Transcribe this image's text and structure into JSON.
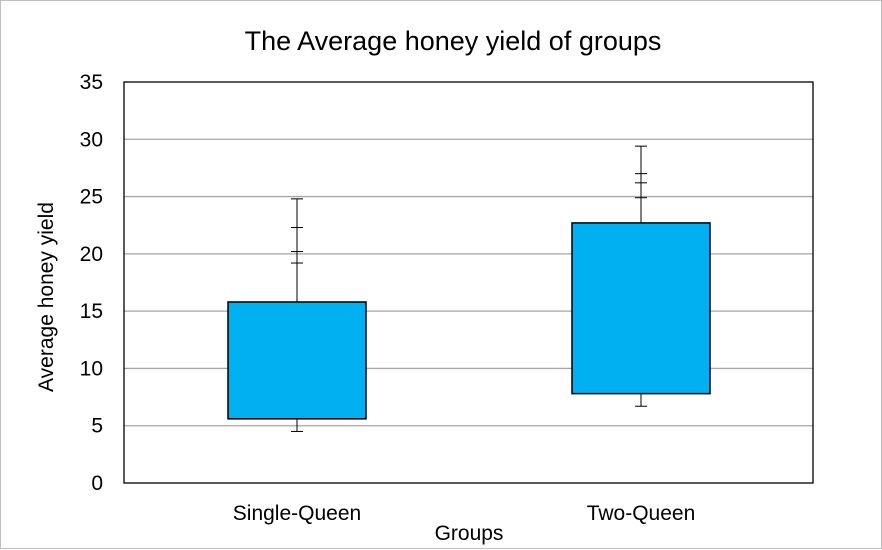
{
  "chart_data": {
    "type": "box",
    "title": "The Average honey yield of groups",
    "xlabel": "Groups",
    "ylabel": "Average honey yield",
    "ylim": [
      0,
      35
    ],
    "yticks": [
      0,
      5,
      10,
      15,
      20,
      25,
      30,
      35
    ],
    "grid": true,
    "colors": {
      "box_fill": "#00b0f0",
      "box_stroke": "#000000",
      "grid": "#a6a6a6"
    },
    "categories": [
      "Single-Queen",
      "Two-Queen"
    ],
    "boxes": [
      {
        "category": "Single-Queen",
        "min": 4.5,
        "q1": 5.6,
        "q3": 15.8,
        "max": 24.8,
        "marks": [
          19.2,
          20.2,
          22.3
        ]
      },
      {
        "category": "Two-Queen",
        "min": 6.7,
        "q1": 7.8,
        "q3": 22.7,
        "max": 29.4,
        "marks": [
          24.9,
          26.2,
          27.0
        ]
      }
    ]
  }
}
